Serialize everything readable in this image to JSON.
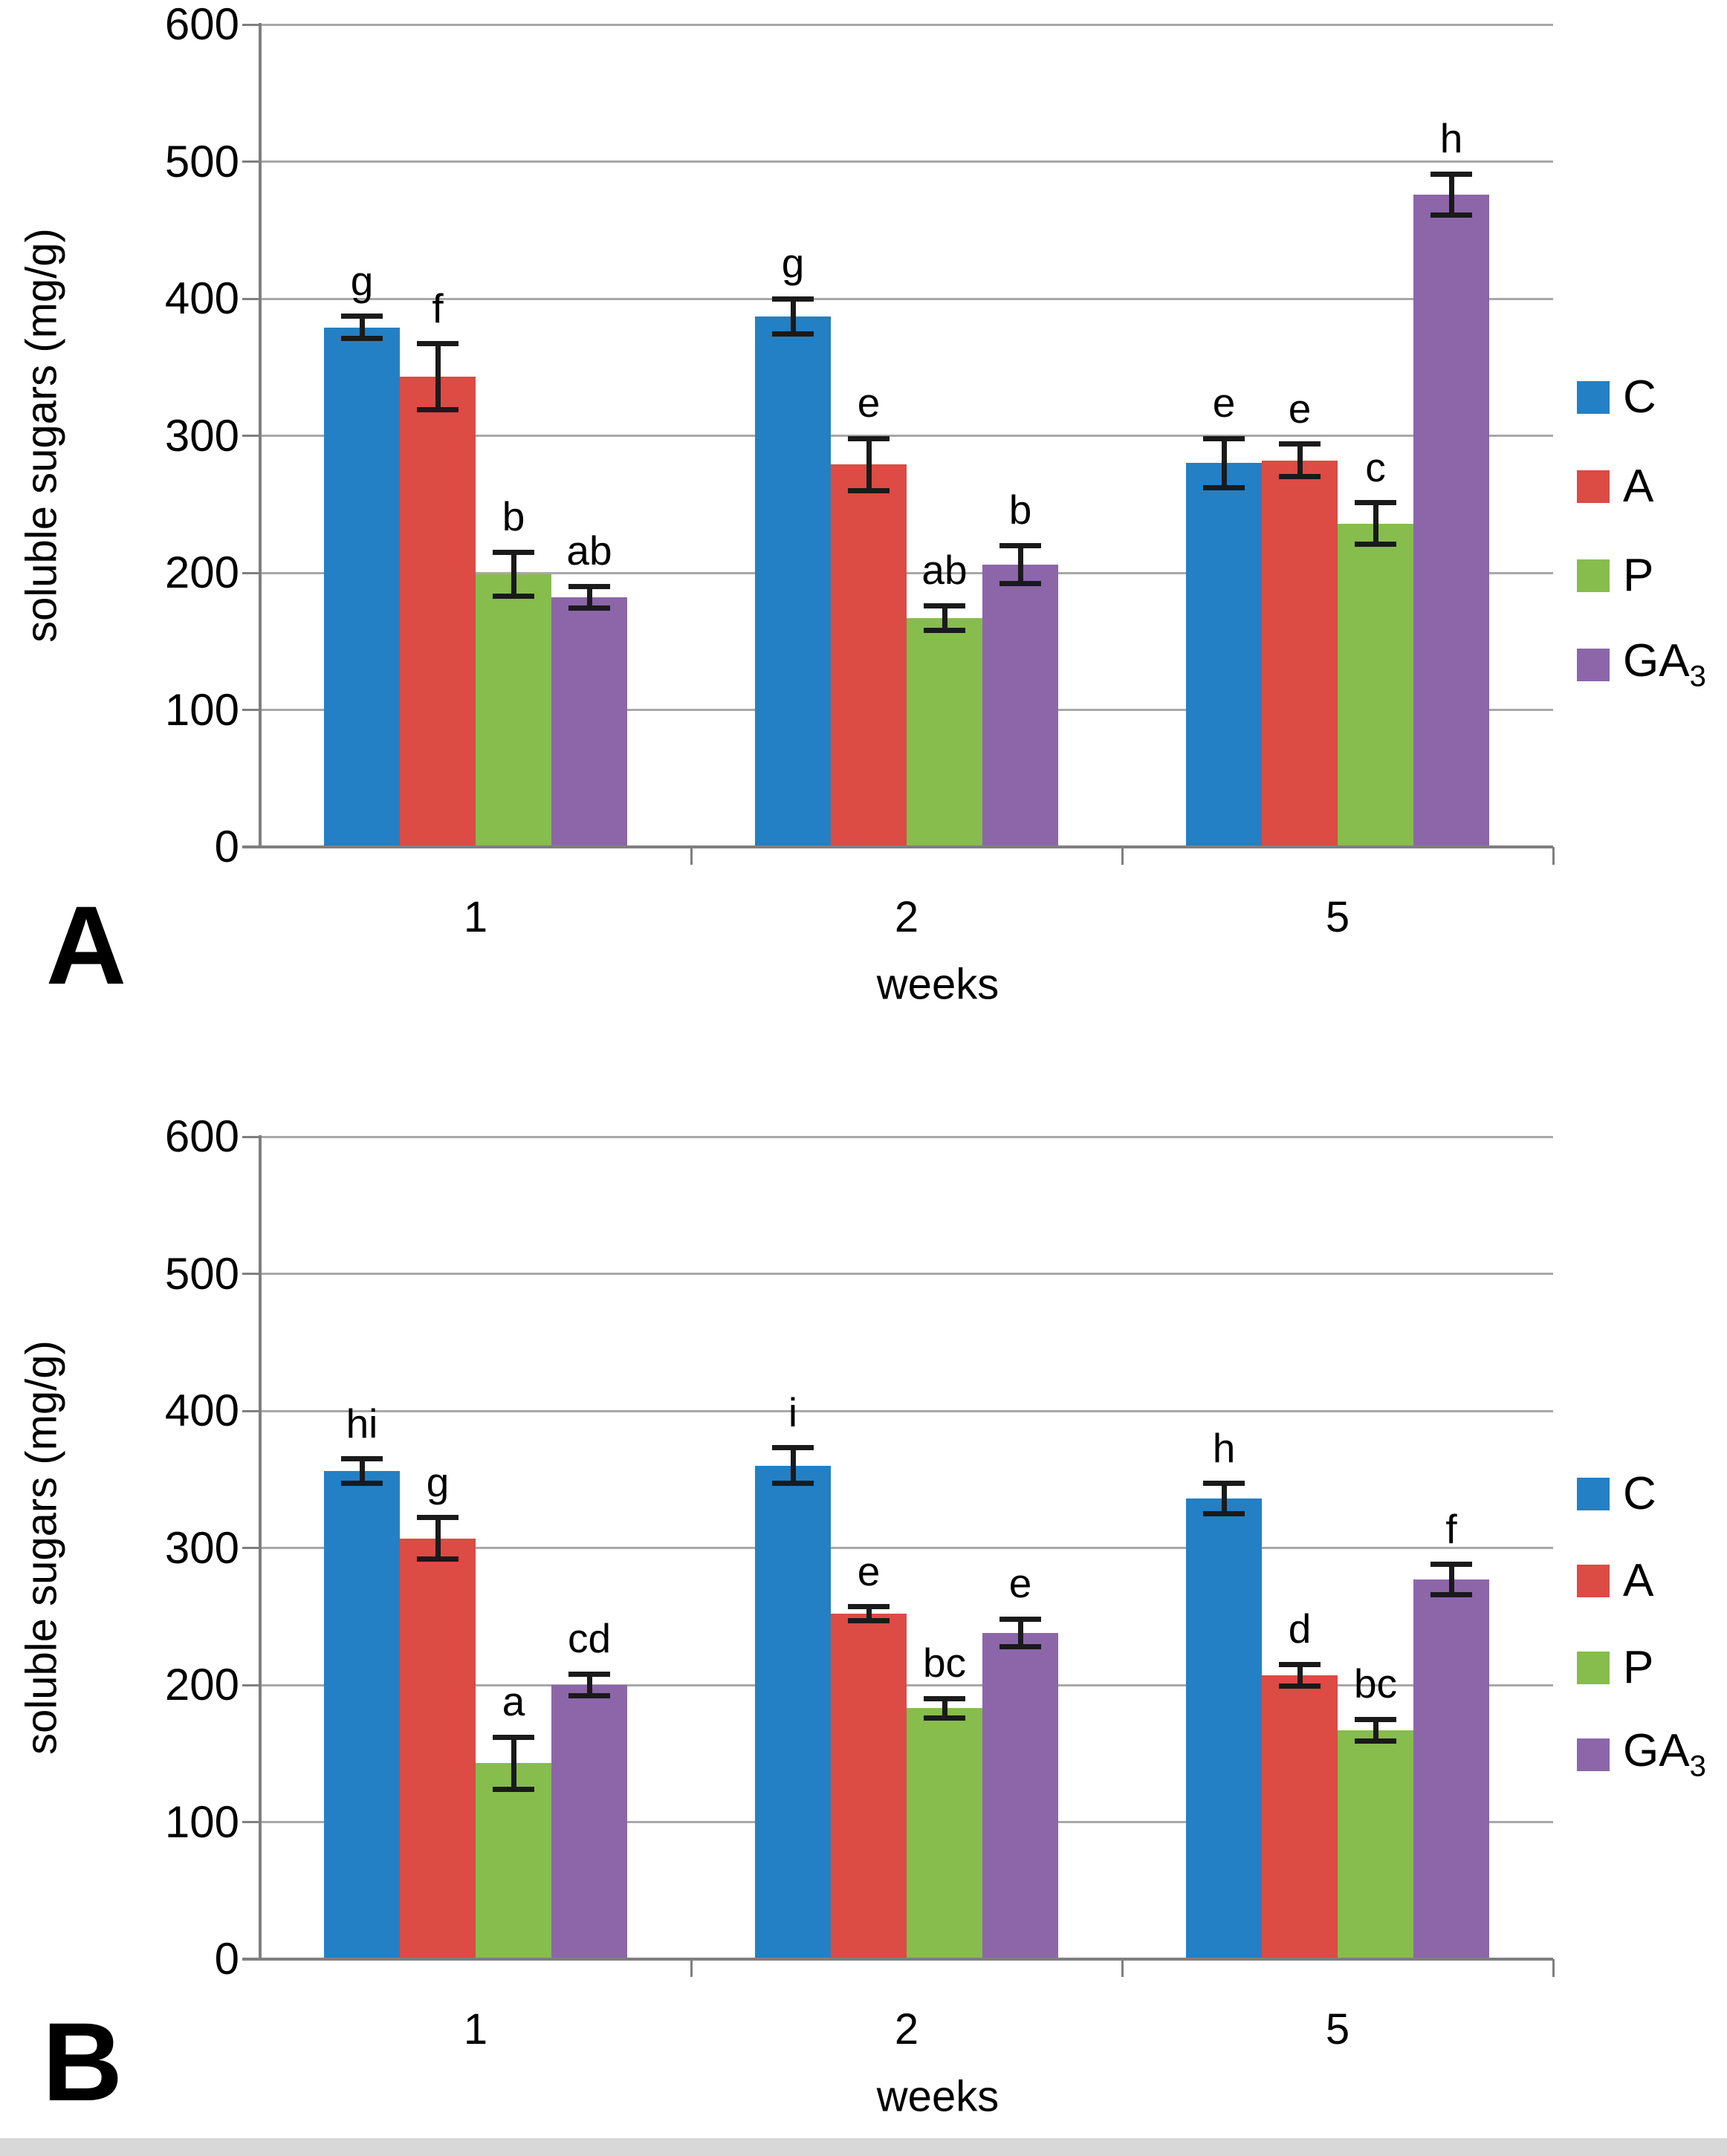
{
  "figure": {
    "panel_labels": [
      "A",
      "B"
    ],
    "colors": {
      "C": "#2380C4",
      "A": "#DC4B44",
      "P": "#86BD4D",
      "GA3": "#8C66A9",
      "grid": "#A8A8A8",
      "axis": "#7F7F7F",
      "error_bar": "#1a1a1a",
      "bottom_strip": "#D8D8D8"
    },
    "legend": [
      {
        "main": "C",
        "sub": ""
      },
      {
        "main": "A",
        "sub": ""
      },
      {
        "main": "P",
        "sub": ""
      },
      {
        "main": "GA",
        "sub": "3"
      }
    ]
  },
  "chart_data": [
    {
      "type": "bar",
      "panel_label": "A",
      "ylabel": "soluble sugars (mg/g)",
      "xlabel": "weeks",
      "ylim": [
        0,
        600
      ],
      "ytick_step": 100,
      "grid": "horizontal",
      "legend_position": "right",
      "categories": [
        "1",
        "2",
        "5"
      ],
      "series": [
        {
          "name": "C",
          "color_key": "C",
          "values": [
            379,
            387,
            280
          ],
          "errors": [
            8,
            13,
            18
          ],
          "letters": [
            "g",
            "g",
            "e"
          ]
        },
        {
          "name": "A",
          "color_key": "A",
          "values": [
            343,
            279,
            282
          ],
          "errors": [
            24,
            19,
            12
          ],
          "letters": [
            "f",
            "e",
            "e"
          ]
        },
        {
          "name": "P",
          "color_key": "P",
          "values": [
            199,
            167,
            236
          ],
          "errors": [
            16,
            9,
            15
          ],
          "letters": [
            "b",
            "ab",
            "c"
          ]
        },
        {
          "name": "GA3",
          "color_key": "GA3",
          "values": [
            182,
            206,
            476
          ],
          "errors": [
            8,
            14,
            15
          ],
          "letters": [
            "ab",
            "b",
            "h"
          ]
        }
      ]
    },
    {
      "type": "bar",
      "panel_label": "B",
      "ylabel": "soluble sugars (mg/g)",
      "xlabel": "weeks",
      "ylim": [
        0,
        600
      ],
      "ytick_step": 100,
      "grid": "horizontal",
      "legend_position": "right",
      "categories": [
        "1",
        "2",
        "5"
      ],
      "series": [
        {
          "name": "C",
          "color_key": "C",
          "values": [
            356,
            360,
            336
          ],
          "errors": [
            9,
            13,
            11
          ],
          "letters": [
            "hi",
            "i",
            "h"
          ]
        },
        {
          "name": "A",
          "color_key": "A",
          "values": [
            307,
            252,
            207
          ],
          "errors": [
            15,
            5,
            8
          ],
          "letters": [
            "g",
            "e",
            "d"
          ]
        },
        {
          "name": "P",
          "color_key": "P",
          "values": [
            143,
            183,
            167
          ],
          "errors": [
            19,
            7,
            8
          ],
          "letters": [
            "a",
            "bc",
            "bc"
          ]
        },
        {
          "name": "GA3",
          "color_key": "GA3",
          "values": [
            200,
            238,
            277
          ],
          "errors": [
            8,
            10,
            11
          ],
          "letters": [
            "cd",
            "e",
            "f"
          ]
        }
      ]
    }
  ]
}
